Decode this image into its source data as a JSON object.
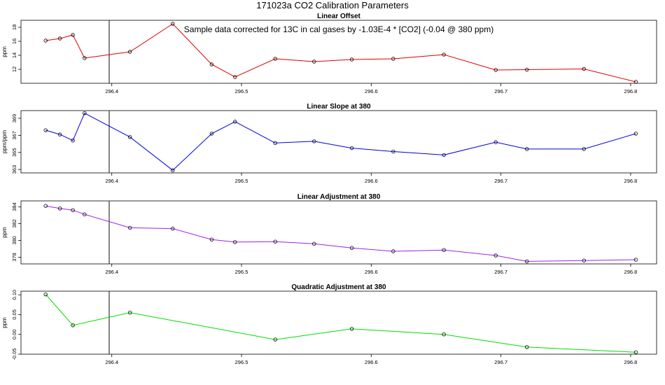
{
  "figure": {
    "title": "171023a   CO2 Calibration Parameters"
  },
  "chart_data": [
    {
      "type": "line",
      "title": "Linear Offset",
      "ylabel": "ppm",
      "xlabel": "",
      "annotation": "Sample data corrected for 13C in cal gases by -1.03E-4 * [CO2] (-0.04 @ 380 ppm)",
      "color": "#e00000",
      "xlim": [
        296.33,
        296.82
      ],
      "ylim": [
        10.0,
        19.0
      ],
      "xticks": [
        296.4,
        296.5,
        296.6,
        296.7,
        296.8
      ],
      "xtick_labels": [
        "296.4",
        "296.5",
        "296.6",
        "296.7",
        "296.8"
      ],
      "yticks": [
        12,
        14,
        16,
        18
      ],
      "ytick_labels": [
        "12",
        "14",
        "16",
        "18"
      ],
      "vline_x": 296.398,
      "x": [
        296.349,
        296.36,
        296.37,
        296.379,
        296.414,
        296.447,
        296.477,
        296.495,
        296.526,
        296.556,
        296.585,
        296.617,
        296.656,
        296.696,
        296.72,
        296.764,
        296.804
      ],
      "y": [
        16.1,
        16.4,
        16.9,
        13.6,
        14.5,
        18.5,
        12.7,
        10.9,
        13.5,
        13.1,
        13.4,
        13.5,
        14.1,
        11.9,
        11.95,
        12.05,
        10.2
      ]
    },
    {
      "type": "line",
      "title": "Linear Slope at 380",
      "ylabel": "ppm/ppm",
      "xlabel": "",
      "color": "#0000e0",
      "xlim": [
        296.33,
        296.82
      ],
      "ylim": [
        362.6,
        369.9
      ],
      "xticks": [
        296.4,
        296.5,
        296.6,
        296.7,
        296.8
      ],
      "xtick_labels": [
        "296.4",
        "296.5",
        "296.6",
        "296.7",
        "296.8"
      ],
      "yticks": [
        363,
        365,
        367,
        369
      ],
      "ytick_labels": [
        "363",
        "365",
        "367",
        "369"
      ],
      "vline_x": 296.398,
      "x": [
        296.349,
        296.36,
        296.37,
        296.379,
        296.414,
        296.447,
        296.477,
        296.495,
        296.526,
        296.556,
        296.585,
        296.617,
        296.656,
        296.696,
        296.72,
        296.764,
        296.804
      ],
      "y": [
        367.6,
        367.1,
        366.4,
        369.6,
        366.8,
        362.9,
        367.2,
        368.6,
        366.1,
        366.3,
        365.5,
        365.1,
        364.7,
        366.2,
        365.4,
        365.4,
        367.2
      ]
    },
    {
      "type": "line",
      "title": "Linear Adjustment at 380",
      "ylabel": "ppm",
      "xlabel": "",
      "color": "#a020f0",
      "xlim": [
        296.33,
        296.82
      ],
      "ylim": [
        377.2,
        384.7
      ],
      "xticks": [
        296.4,
        296.5,
        296.6,
        296.7,
        296.8
      ],
      "xtick_labels": [
        "296.4",
        "296.5",
        "296.6",
        "296.7",
        "296.8"
      ],
      "yticks": [
        378,
        380,
        382,
        384
      ],
      "ytick_labels": [
        "378",
        "380",
        "382",
        "384"
      ],
      "vline_x": 296.398,
      "x": [
        296.349,
        296.36,
        296.37,
        296.379,
        296.414,
        296.447,
        296.477,
        296.495,
        296.526,
        296.556,
        296.585,
        296.617,
        296.656,
        296.696,
        296.72,
        296.764,
        296.804
      ],
      "y": [
        384.1,
        383.8,
        383.6,
        383.1,
        381.5,
        381.4,
        380.1,
        379.8,
        379.85,
        379.6,
        379.1,
        378.7,
        378.85,
        378.2,
        377.5,
        377.6,
        377.7
      ]
    },
    {
      "type": "line",
      "title": "Quadratic Adjustment at 380",
      "ylabel": "ppm",
      "xlabel": "",
      "color": "#00dd00",
      "xlim": [
        296.33,
        296.82
      ],
      "ylim": [
        -0.05,
        0.109
      ],
      "xticks": [
        296.4,
        296.5,
        296.6,
        296.7,
        296.8
      ],
      "xtick_labels": [
        "296.4",
        "296.5",
        "296.6",
        "296.7",
        "296.8"
      ],
      "yticks": [
        -0.05,
        0.0,
        0.05,
        0.1
      ],
      "ytick_labels": [
        "-0.05",
        "0.00",
        "0.05",
        "0.10"
      ],
      "vline_x": 296.398,
      "x": [
        296.349,
        296.37,
        296.414,
        296.526,
        296.585,
        296.656,
        296.72,
        296.804
      ],
      "y": [
        0.101,
        0.023,
        0.055,
        -0.013,
        0.014,
        0.0,
        -0.032,
        -0.045
      ]
    }
  ]
}
